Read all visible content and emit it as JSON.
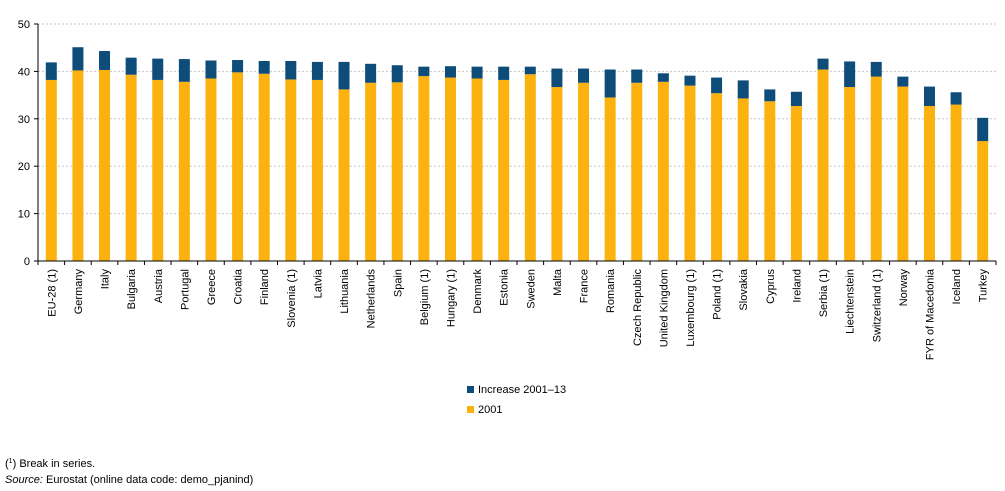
{
  "chart_data": {
    "type": "bar",
    "stacked": true,
    "categories": [
      "EU-28 (1)",
      "Germany",
      "Italy",
      "Bulgaria",
      "Austria",
      "Portugal",
      "Greece",
      "Croatia",
      "Finland",
      "Slovenia (1)",
      "Latvia",
      "Lithuania",
      "Netherlands",
      "Spain",
      "Belgium (1)",
      "Hungary (1)",
      "Denmark",
      "Estonia",
      "Sweden",
      "Malta",
      "France",
      "Romania",
      "Czech Republic",
      "United Kingdom",
      "Luxembourg (1)",
      "Poland (1)",
      "Slovakia",
      "Cyprus",
      "Ireland",
      "Serbia (1)",
      "Liechtenstein",
      "Switzerland (1)",
      "Norway",
      "FYR of Macedonia",
      "Iceland",
      "Turkey"
    ],
    "series": [
      {
        "name": "2001",
        "color": "#FBB20E",
        "values": [
          38.2,
          40.2,
          40.3,
          39.3,
          38.2,
          37.8,
          38.5,
          39.8,
          39.5,
          38.3,
          38.2,
          36.2,
          37.6,
          37.7,
          39.0,
          38.7,
          38.5,
          38.2,
          39.4,
          36.7,
          37.6,
          34.5,
          37.6,
          37.8,
          37.0,
          35.4,
          34.3,
          33.7,
          32.7,
          40.4,
          36.7,
          38.9,
          36.8,
          32.7,
          33.0,
          25.3
        ]
      },
      {
        "name": "Increase 2001–13",
        "color": "#0E4C7A",
        "values": [
          3.7,
          4.9,
          4.0,
          3.6,
          4.5,
          4.8,
          3.8,
          2.6,
          2.7,
          3.9,
          3.8,
          5.8,
          4.0,
          3.6,
          2.0,
          2.4,
          2.5,
          2.8,
          1.6,
          3.9,
          3.0,
          5.9,
          2.8,
          1.8,
          2.1,
          3.3,
          3.8,
          2.5,
          3.0,
          2.3,
          5.4,
          3.1,
          2.1,
          4.1,
          2.6,
          4.9
        ]
      }
    ],
    "y_ticks": [
      "0",
      "10",
      "20",
      "30",
      "40",
      "50"
    ],
    "ylim": [
      0,
      50
    ],
    "grid": "horizontal",
    "legend_order": [
      "Increase 2001–13",
      "2001"
    ],
    "legend_position": "bottom-center"
  },
  "footnotes": {
    "break_mark": "1",
    "break_text": "Break in series.",
    "source_label": "Source:",
    "source_text": "Eurostat (online data code: demo_pjanind)"
  }
}
